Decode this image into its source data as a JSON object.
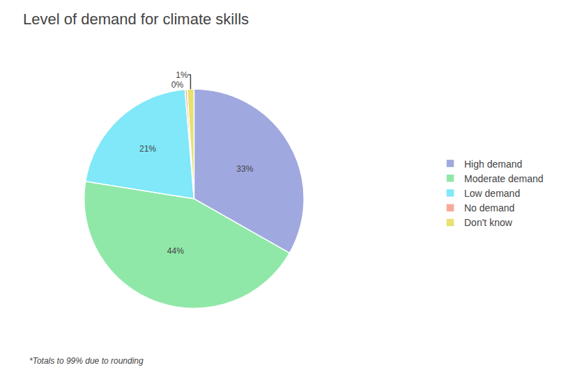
{
  "chart_data": {
    "type": "pie",
    "title": "Level of demand for climate skills",
    "categories": [
      "High demand",
      "Moderate demand",
      "Low demand",
      "No demand",
      "Don't know"
    ],
    "values": [
      33,
      44,
      21,
      0.3,
      1
    ],
    "value_labels": [
      "33%",
      "44%",
      "21%",
      "0%",
      "1%"
    ],
    "colors": [
      "#a0a8e0",
      "#90e8a8",
      "#80e8f8",
      "#f8a898",
      "#e8e070"
    ],
    "data_labels": true,
    "legend": "right",
    "annotations": [
      "*Totals to 99% due to rounding"
    ]
  }
}
